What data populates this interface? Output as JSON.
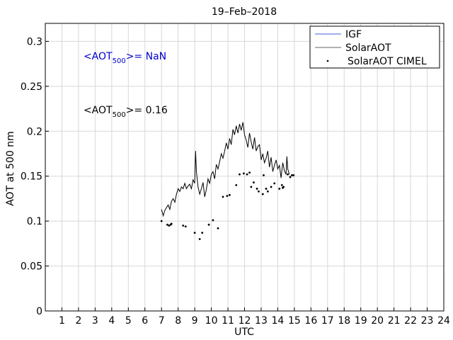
{
  "chart_data": {
    "type": "line",
    "title": "19–Feb–2018",
    "xlabel": "UTC",
    "ylabel": "AOT at 500 nm",
    "xlim": [
      0,
      24
    ],
    "ylim": [
      0,
      0.32
    ],
    "xticks": [
      1,
      2,
      3,
      4,
      5,
      6,
      7,
      8,
      9,
      10,
      11,
      12,
      13,
      14,
      15,
      16,
      17,
      18,
      19,
      20,
      21,
      22,
      23,
      24
    ],
    "yticks": [
      0,
      0.05,
      0.1,
      0.15,
      0.2,
      0.25,
      0.3
    ],
    "ytick_labels": [
      "0",
      "0.05",
      "0.1",
      "0.15",
      "0.2",
      "0.25",
      "0.3"
    ],
    "grid": true,
    "legend_position": "top-right",
    "legend": [
      "IGF",
      "SolarAOT",
      "SolarAOT CIMEL"
    ],
    "colors": {
      "IGF": "#4a5ad8",
      "SolarAOT": "#000000",
      "CIMEL": "#000000",
      "annot_blue": "#0000cc",
      "grid": "#d8d8d8"
    },
    "annotations": [
      {
        "prefix": "<AOT",
        "sub": "500",
        "suffix": ">=  NaN",
        "color": "blue",
        "at": [
          2.3,
          0.28
        ]
      },
      {
        "prefix": "<AOT",
        "sub": "500",
        "suffix": ">= 0.16",
        "color": "black",
        "at": [
          2.3,
          0.22
        ]
      }
    ],
    "series": [
      {
        "name": "IGF",
        "style": "line",
        "x": [],
        "y": []
      },
      {
        "name": "SolarAOT",
        "style": "line",
        "x": [
          7.0,
          7.1,
          7.2,
          7.3,
          7.4,
          7.5,
          7.6,
          7.7,
          7.8,
          7.9,
          8.0,
          8.1,
          8.2,
          8.3,
          8.4,
          8.5,
          8.6,
          8.7,
          8.8,
          8.9,
          9.0,
          9.05,
          9.1,
          9.2,
          9.3,
          9.4,
          9.5,
          9.6,
          9.7,
          9.8,
          9.9,
          10.0,
          10.1,
          10.2,
          10.3,
          10.4,
          10.5,
          10.6,
          10.7,
          10.8,
          10.9,
          11.0,
          11.1,
          11.2,
          11.3,
          11.4,
          11.5,
          11.6,
          11.7,
          11.8,
          11.9,
          12.0,
          12.1,
          12.2,
          12.3,
          12.4,
          12.5,
          12.6,
          12.7,
          12.8,
          12.9,
          13.0,
          13.1,
          13.2,
          13.3,
          13.4,
          13.5,
          13.6,
          13.7,
          13.8,
          13.9,
          14.0,
          14.1,
          14.2,
          14.3,
          14.4,
          14.5,
          14.55,
          14.6,
          14.7
        ],
        "y": [
          0.113,
          0.106,
          0.112,
          0.115,
          0.118,
          0.113,
          0.122,
          0.125,
          0.121,
          0.13,
          0.136,
          0.133,
          0.138,
          0.136,
          0.142,
          0.136,
          0.139,
          0.141,
          0.136,
          0.146,
          0.142,
          0.178,
          0.155,
          0.138,
          0.13,
          0.136,
          0.143,
          0.127,
          0.135,
          0.147,
          0.142,
          0.152,
          0.155,
          0.147,
          0.163,
          0.158,
          0.166,
          0.175,
          0.17,
          0.178,
          0.187,
          0.18,
          0.192,
          0.185,
          0.202,
          0.196,
          0.206,
          0.198,
          0.208,
          0.201,
          0.21,
          0.196,
          0.19,
          0.182,
          0.198,
          0.188,
          0.18,
          0.193,
          0.178,
          0.183,
          0.185,
          0.168,
          0.175,
          0.165,
          0.17,
          0.178,
          0.16,
          0.171,
          0.155,
          0.162,
          0.168,
          0.158,
          0.162,
          0.148,
          0.165,
          0.156,
          0.152,
          0.172,
          0.158,
          0.152
        ]
      },
      {
        "name": "SolarAOT CIMEL",
        "style": "points",
        "x": [
          7.0,
          7.35,
          7.45,
          7.55,
          7.6,
          8.3,
          8.45,
          9.0,
          9.3,
          9.45,
          9.85,
          10.1,
          10.4,
          10.7,
          10.95,
          11.1,
          11.5,
          11.7,
          11.95,
          12.15,
          12.3,
          12.4,
          12.55,
          12.75,
          12.85,
          13.1,
          13.15,
          13.3,
          13.4,
          13.6,
          13.8,
          14.1,
          14.25,
          14.3,
          14.35,
          14.6,
          14.75,
          14.85,
          14.95
        ],
        "y": [
          0.1,
          0.096,
          0.095,
          0.096,
          0.097,
          0.095,
          0.094,
          0.087,
          0.08,
          0.087,
          0.096,
          0.101,
          0.092,
          0.127,
          0.128,
          0.129,
          0.14,
          0.152,
          0.153,
          0.152,
          0.154,
          0.138,
          0.143,
          0.136,
          0.133,
          0.13,
          0.151,
          0.136,
          0.133,
          0.138,
          0.142,
          0.136,
          0.14,
          0.137,
          0.138,
          0.152,
          0.149,
          0.151,
          0.151
        ]
      }
    ]
  }
}
